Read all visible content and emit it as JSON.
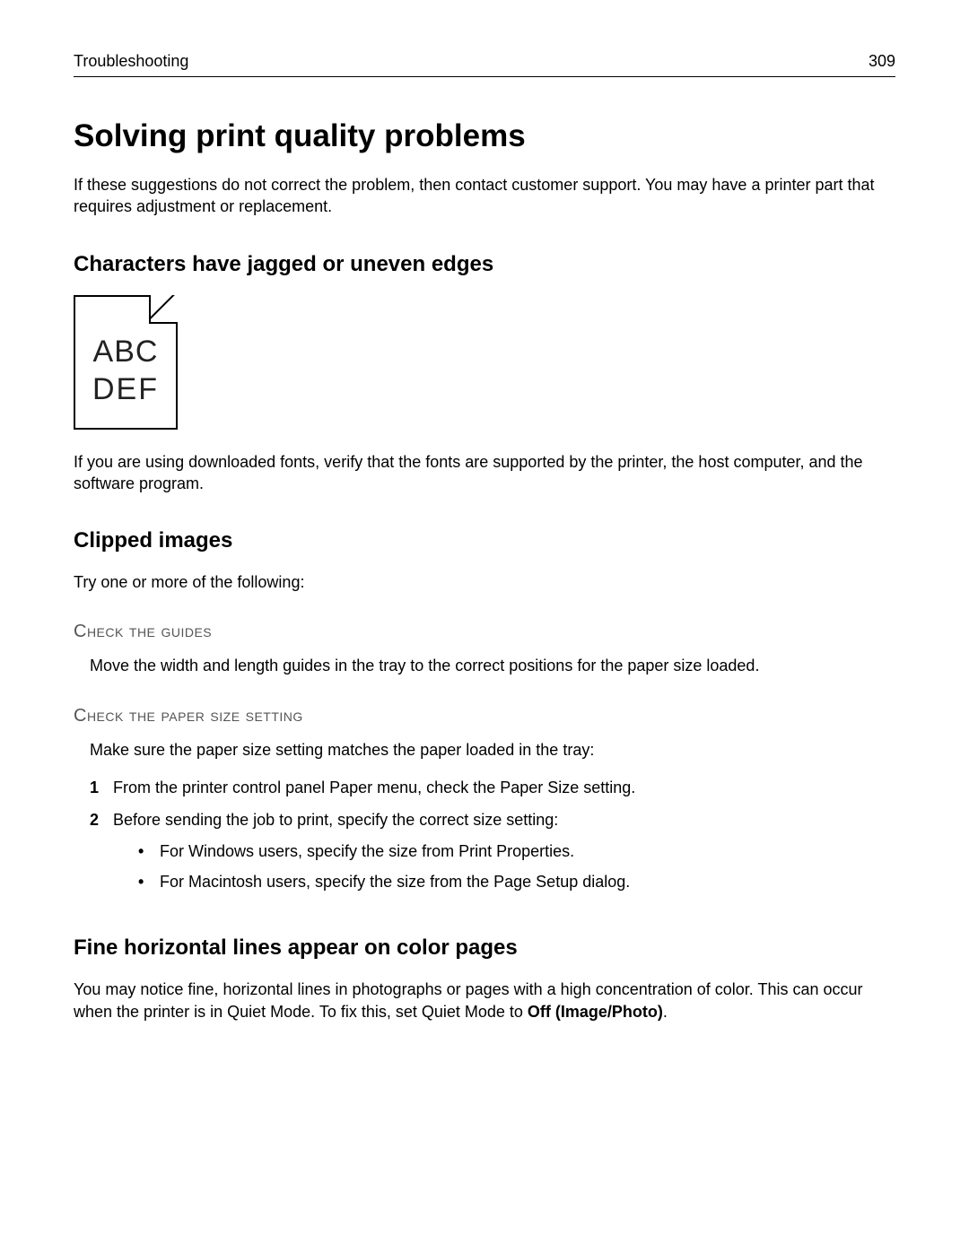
{
  "header": {
    "section": "Troubleshooting",
    "page_number": "309"
  },
  "title": "Solving print quality problems",
  "intro": "If these suggestions do not correct the problem, then contact customer support. You may have a printer part that requires adjustment or replacement.",
  "sec1": {
    "heading": "Characters have jagged or uneven edges",
    "illus": {
      "line1": "ABC",
      "line2": "DEF"
    },
    "para": "If you are using downloaded fonts, verify that the fonts are supported by the printer, the host computer, and the software program."
  },
  "sec2": {
    "heading": "Clipped images",
    "intro": "Try one or more of the following:",
    "sub1": {
      "heading": "Check the guides",
      "para": "Move the width and length guides in the tray to the correct positions for the paper size loaded."
    },
    "sub2": {
      "heading": "Check the paper size setting",
      "intro": "Make sure the paper size setting matches the paper loaded in the tray:",
      "step1": "From the printer control panel Paper menu, check the Paper Size setting.",
      "step2": "Before sending the job to print, specify the correct size setting:",
      "bullet1": "For Windows users, specify the size from Print Properties.",
      "bullet2": "For Macintosh users, specify the size from the Page Setup dialog."
    }
  },
  "sec3": {
    "heading": "Fine horizontal lines appear on color pages",
    "para_pre": "You may notice fine, horizontal lines in photographs or pages with a high concentration of color. This can occur when the printer is in Quiet Mode. To fix this, set Quiet Mode to ",
    "para_bold": "Off (Image/Photo)",
    "para_post": "."
  }
}
